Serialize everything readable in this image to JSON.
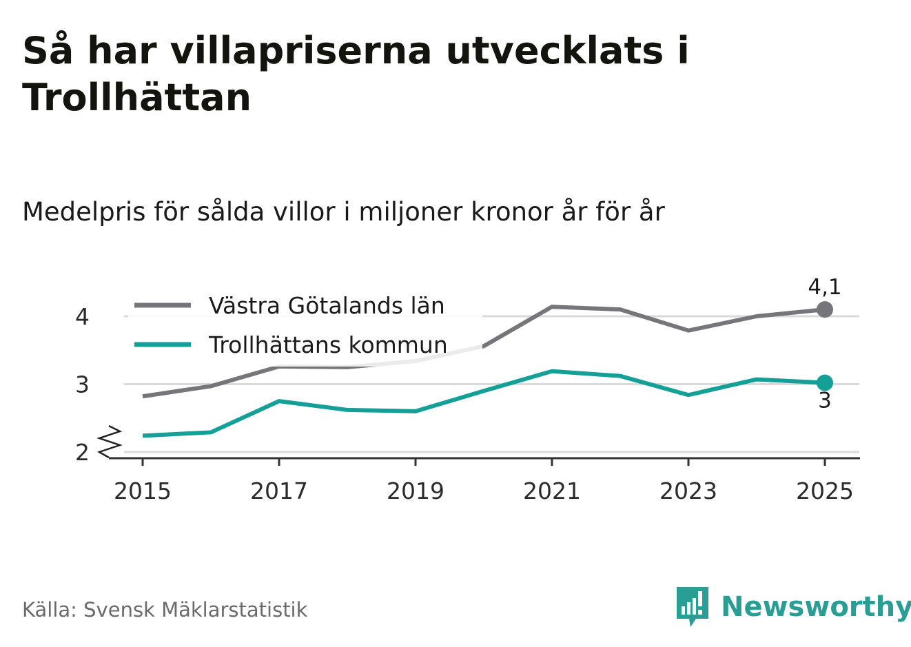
{
  "title": "Så har villapriserna utvecklats i Trollhättan",
  "subtitle": "Medelpris för sålda villor i miljoner kronor år för år",
  "source": "Källa: Svensk Mäklarstatistik",
  "brand": {
    "name": "Newsworthy"
  },
  "colors": {
    "county": "#76757a",
    "municipality": "#14a096",
    "grid": "#dadada",
    "axis": "#333333",
    "brand": "#2a9d94"
  },
  "chart_data": {
    "type": "line",
    "title": "Så har villapriserna utvecklats i Trollhättan",
    "subtitle": "Medelpris för sålda villor i miljoner kronor år för år",
    "xlabel": "",
    "ylabel": "",
    "x": [
      2015,
      2016,
      2017,
      2018,
      2019,
      2020,
      2021,
      2022,
      2023,
      2024,
      2025
    ],
    "x_ticks": [
      "2015",
      "2017",
      "2019",
      "2021",
      "2023",
      "2025"
    ],
    "y_ticks": [
      "2",
      "3",
      "4"
    ],
    "ylim": [
      2,
      4.2
    ],
    "axis_break": true,
    "grid": true,
    "legend_position": "top-left",
    "series": [
      {
        "name": "Västra Götalands län",
        "color": "#76757a",
        "values": [
          2.82,
          2.97,
          3.26,
          3.25,
          3.34,
          3.56,
          4.14,
          4.1,
          3.79,
          4.0,
          4.1
        ],
        "end_label": "4,1"
      },
      {
        "name": "Trollhättans kommun",
        "color": "#14a096",
        "values": [
          2.24,
          2.29,
          2.75,
          2.62,
          2.6,
          2.9,
          3.19,
          3.12,
          2.84,
          3.07,
          3.02
        ],
        "end_label": "3"
      }
    ]
  }
}
